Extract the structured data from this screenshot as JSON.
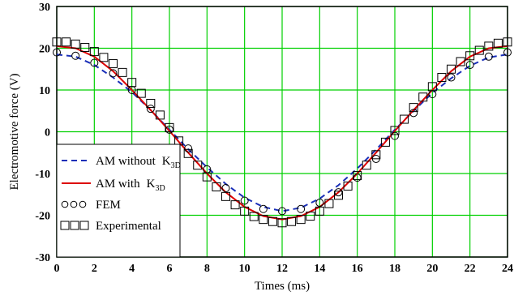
{
  "chart_data": {
    "type": "line",
    "xlabel": "Times (ms)",
    "ylabel": "Electromotive force (V)",
    "xlim": [
      0,
      24
    ],
    "ylim": [
      -30,
      30
    ],
    "x_ticks": [
      0,
      2,
      4,
      6,
      8,
      10,
      12,
      14,
      16,
      18,
      20,
      22,
      24
    ],
    "y_ticks": [
      -30,
      -20,
      -10,
      0,
      10,
      20,
      30
    ],
    "grid": true,
    "grid_color": "#00d000",
    "legend_position": "bottom-left",
    "series": [
      {
        "name": "AM without",
        "name_suffix": "K",
        "name_subscript": "3D",
        "style": "dashed",
        "color": "#1a2fb8",
        "x": [
          0,
          1,
          2,
          3,
          4,
          5,
          6,
          7,
          8,
          9,
          10,
          11,
          12,
          13,
          14,
          15,
          16,
          17,
          18,
          19,
          20,
          21,
          22,
          23,
          24
        ],
        "y": [
          18.5,
          18.0,
          16.0,
          13.0,
          9.5,
          5.2,
          0.5,
          -4.2,
          -8.5,
          -12.5,
          -15.8,
          -18.0,
          -19.0,
          -18.2,
          -16.0,
          -12.8,
          -8.8,
          -4.3,
          0.5,
          5.0,
          9.3,
          12.8,
          15.8,
          17.8,
          18.5
        ]
      },
      {
        "name": "AM with",
        "name_suffix": "K",
        "name_subscript": "3D",
        "style": "solid",
        "color": "#dd0000",
        "x": [
          0,
          1,
          2,
          3,
          4,
          5,
          6,
          7,
          8,
          9,
          10,
          11,
          12,
          13,
          14,
          15,
          16,
          17,
          18,
          19,
          20,
          21,
          22,
          23,
          24
        ],
        "y": [
          20.5,
          20.0,
          18.0,
          14.5,
          10.0,
          5.2,
          0.2,
          -5.0,
          -10.0,
          -14.5,
          -18.0,
          -20.2,
          -21.0,
          -20.2,
          -18.0,
          -14.5,
          -10.0,
          -5.0,
          0.2,
          5.2,
          10.0,
          14.5,
          18.0,
          20.0,
          20.5
        ]
      },
      {
        "name": "FEM",
        "style": "circle",
        "color": "#000000",
        "x": [
          0,
          1,
          2,
          3,
          4,
          5,
          6,
          7,
          8,
          9,
          10,
          11,
          12,
          13,
          14,
          15,
          16,
          17,
          18,
          19,
          20,
          21,
          22,
          23,
          24
        ],
        "y": [
          19.0,
          18.2,
          16.5,
          14.0,
          10.0,
          5.5,
          0.5,
          -4.0,
          -9.0,
          -13.5,
          -16.5,
          -18.5,
          -19.0,
          -18.5,
          -17.0,
          -14.5,
          -11.0,
          -6.5,
          -1.0,
          4.5,
          9.0,
          13.0,
          16.0,
          18.0,
          19.0
        ]
      },
      {
        "name": "Experimental",
        "style": "square",
        "color": "#000000",
        "x": [
          0,
          0.5,
          1,
          1.5,
          2,
          2.5,
          3,
          3.5,
          4,
          4.5,
          5,
          5.5,
          6,
          6.5,
          7,
          7.5,
          8,
          8.5,
          9,
          9.5,
          10,
          10.5,
          11,
          11.5,
          12,
          12.5,
          13,
          13.5,
          14,
          14.5,
          15,
          15.5,
          16,
          16.5,
          17,
          17.5,
          18,
          18.5,
          19,
          19.5,
          20,
          20.5,
          21,
          21.5,
          22,
          22.5,
          23,
          23.5,
          24
        ],
        "y": [
          21.5,
          21.5,
          21.0,
          20.2,
          19.2,
          17.8,
          16.3,
          14.2,
          11.8,
          9.2,
          6.8,
          4.0,
          1.0,
          -2.2,
          -5.2,
          -8.0,
          -10.8,
          -13.2,
          -15.5,
          -17.5,
          -19.0,
          -20.3,
          -21.0,
          -21.5,
          -21.8,
          -21.5,
          -21.0,
          -20.2,
          -19.0,
          -17.2,
          -15.2,
          -13.0,
          -10.5,
          -8.0,
          -5.5,
          -2.5,
          0.3,
          3.0,
          5.8,
          8.3,
          10.8,
          13.0,
          15.0,
          16.8,
          18.2,
          19.5,
          20.5,
          21.2,
          21.5
        ]
      }
    ]
  }
}
